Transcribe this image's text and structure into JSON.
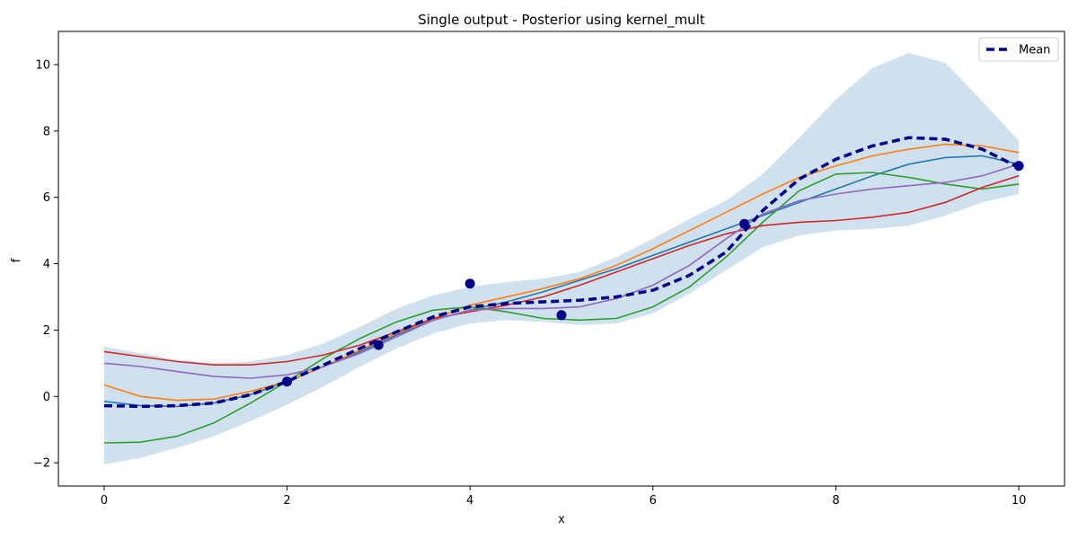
{
  "chart_data": {
    "type": "line",
    "title": "Single output - Posterior using kernel_mult",
    "xlabel": "x",
    "ylabel": "f",
    "xlim": [
      -0.5,
      10.5
    ],
    "ylim": [
      -2.7,
      11.0
    ],
    "xticks": [
      0,
      2,
      4,
      6,
      8,
      10
    ],
    "yticks": [
      -2,
      0,
      2,
      4,
      6,
      8,
      10
    ],
    "xtick_labels": [
      "0",
      "2",
      "4",
      "6",
      "8",
      "10"
    ],
    "ytick_labels": [
      "−2",
      "0",
      "2",
      "4",
      "6",
      "8",
      "10"
    ],
    "grid": false,
    "legend": {
      "position": "upper right",
      "entries": [
        "Mean"
      ]
    },
    "x": [
      0,
      0.4,
      0.8,
      1.2,
      1.6,
      2.0,
      2.4,
      2.8,
      3.2,
      3.6,
      4.0,
      4.4,
      4.8,
      5.2,
      5.6,
      6.0,
      6.4,
      6.8,
      7.2,
      7.6,
      8.0,
      8.4,
      8.8,
      9.2,
      9.6,
      10.0
    ],
    "confidence_band": {
      "color": "#cfe1ef",
      "lower": [
        -2.05,
        -1.85,
        -1.55,
        -1.2,
        -0.75,
        -0.25,
        0.3,
        0.9,
        1.45,
        1.9,
        2.2,
        2.3,
        2.25,
        2.15,
        2.2,
        2.5,
        3.1,
        3.8,
        4.5,
        4.85,
        5.0,
        5.05,
        5.15,
        5.45,
        5.85,
        6.1
      ],
      "upper": [
        1.5,
        1.3,
        1.1,
        1.0,
        1.05,
        1.25,
        1.6,
        2.1,
        2.65,
        3.05,
        3.3,
        3.45,
        3.55,
        3.75,
        4.2,
        4.75,
        5.35,
        5.9,
        6.7,
        7.8,
        8.95,
        9.9,
        10.35,
        10.05,
        8.9,
        7.7
      ]
    },
    "mean": {
      "name": "Mean",
      "color": "#00008b",
      "values": [
        -0.28,
        -0.3,
        -0.28,
        -0.2,
        0.05,
        0.45,
        0.95,
        1.45,
        1.95,
        2.4,
        2.7,
        2.8,
        2.85,
        2.9,
        3.0,
        3.2,
        3.65,
        4.35,
        5.6,
        6.55,
        7.15,
        7.55,
        7.8,
        7.75,
        7.45,
        6.9
      ]
    },
    "observations": {
      "color": "#00008b",
      "x": [
        2,
        3,
        4,
        5,
        7,
        10
      ],
      "y": [
        0.45,
        1.55,
        3.4,
        2.45,
        5.2,
        6.95
      ]
    },
    "series": [
      {
        "color": "#1f77b4",
        "values": [
          -0.15,
          -0.28,
          -0.3,
          -0.2,
          0.05,
          0.45,
          0.9,
          1.35,
          1.85,
          2.3,
          2.6,
          2.85,
          3.15,
          3.5,
          3.85,
          4.25,
          4.65,
          5.05,
          5.45,
          5.85,
          6.25,
          6.65,
          7.0,
          7.2,
          7.25,
          7.0
        ]
      },
      {
        "color": "#ff7f0e",
        "values": [
          0.35,
          0.0,
          -0.12,
          -0.08,
          0.15,
          0.45,
          0.9,
          1.4,
          1.9,
          2.35,
          2.75,
          3.0,
          3.25,
          3.55,
          3.95,
          4.45,
          5.0,
          5.55,
          6.1,
          6.6,
          6.95,
          7.25,
          7.45,
          7.6,
          7.55,
          7.35
        ]
      },
      {
        "color": "#2ca02c",
        "values": [
          -1.4,
          -1.38,
          -1.2,
          -0.8,
          -0.2,
          0.45,
          1.15,
          1.75,
          2.25,
          2.6,
          2.7,
          2.55,
          2.35,
          2.3,
          2.35,
          2.7,
          3.3,
          4.2,
          5.25,
          6.2,
          6.7,
          6.75,
          6.6,
          6.4,
          6.25,
          6.4
        ]
      },
      {
        "color": "#d62728",
        "values": [
          1.35,
          1.2,
          1.05,
          0.95,
          0.95,
          1.05,
          1.25,
          1.55,
          1.95,
          2.35,
          2.55,
          2.75,
          3.0,
          3.35,
          3.75,
          4.15,
          4.55,
          4.9,
          5.15,
          5.25,
          5.3,
          5.4,
          5.55,
          5.85,
          6.3,
          6.65
        ]
      },
      {
        "color": "#9467bd",
        "values": [
          1.0,
          0.9,
          0.75,
          0.6,
          0.55,
          0.65,
          0.9,
          1.3,
          1.8,
          2.3,
          2.6,
          2.65,
          2.65,
          2.7,
          2.95,
          3.35,
          3.95,
          4.75,
          5.5,
          5.9,
          6.1,
          6.25,
          6.35,
          6.45,
          6.65,
          7.0
        ]
      }
    ]
  }
}
